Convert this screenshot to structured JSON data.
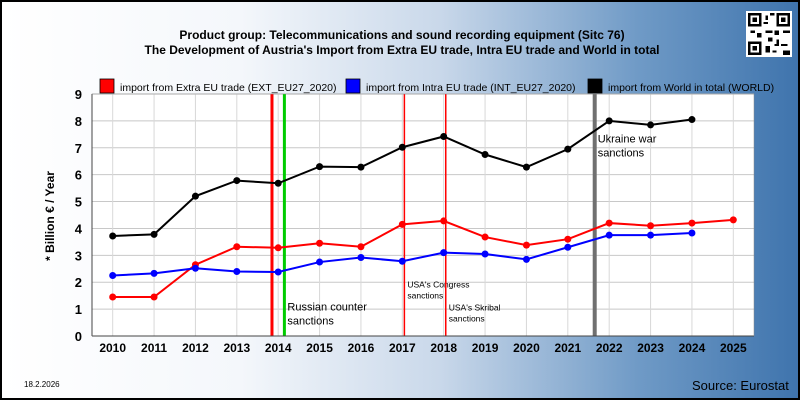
{
  "header": {
    "title_line1": "Product group: Telecommunications and sound recording equipment (Sitc 76)",
    "title_line2": "The Development of Austria's Import from Extra EU trade, Intra EU trade and World in total"
  },
  "footer": {
    "date": "18.2.2026",
    "source": "Source: Eurostat"
  },
  "chart_data": {
    "type": "line",
    "ylabel": "* Billion € / Year",
    "xlabel": "",
    "ylim": [
      0,
      9
    ],
    "yticks": [
      "0",
      "1",
      "2",
      "3",
      "4",
      "5",
      "6",
      "7",
      "8",
      "9"
    ],
    "categories": [
      "2010",
      "2011",
      "2012",
      "2013",
      "2014",
      "2015",
      "2016",
      "2017",
      "2018",
      "2019",
      "2020",
      "2021",
      "2022",
      "2023",
      "2024",
      "2025"
    ],
    "grid": true,
    "legend_position": "top",
    "series": [
      {
        "name": "import from Extra EU trade (EXT_EU27_2020)",
        "color": "#ff0000",
        "values": [
          1.45,
          1.45,
          2.65,
          3.32,
          3.28,
          3.45,
          3.32,
          4.15,
          4.28,
          3.68,
          3.38,
          3.6,
          4.2,
          4.1,
          4.2,
          4.32
        ]
      },
      {
        "name": "import from Intra EU trade (INT_EU27_2020)",
        "color": "#0000ff",
        "values": [
          2.25,
          2.33,
          2.52,
          2.4,
          2.38,
          2.75,
          2.92,
          2.78,
          3.1,
          3.05,
          2.85,
          3.3,
          3.75,
          3.75,
          3.83,
          null
        ]
      },
      {
        "name": "import from World in total (WORLD)",
        "color": "#000000",
        "values": [
          3.72,
          3.78,
          5.2,
          5.78,
          5.68,
          6.3,
          6.28,
          7.02,
          7.42,
          6.75,
          6.28,
          6.95,
          8.0,
          7.85,
          8.05,
          null
        ]
      }
    ],
    "events": [
      {
        "x": 2013.85,
        "color": "#ff0000",
        "width": 3,
        "label_lines": []
      },
      {
        "x": 2014.15,
        "color": "#00cc00",
        "width": 3,
        "label_lines": [
          "Russian counter",
          "sanctions"
        ],
        "label_y": 1.1
      },
      {
        "x": 2017.05,
        "color": "#ff0000",
        "width": 1.5,
        "label_lines": [
          "USA's Congress",
          "sanctions"
        ],
        "label_y": 1.95
      },
      {
        "x": 2018.05,
        "color": "#ff0000",
        "width": 1.5,
        "label_lines": [
          "USA's Skribal",
          "sanctions"
        ],
        "label_y": 1.1
      },
      {
        "x": 2021.65,
        "color": "#707070",
        "width": 4,
        "label_lines": [
          "Ukraine war",
          "sanctions"
        ],
        "label_y": 7.35
      }
    ]
  }
}
